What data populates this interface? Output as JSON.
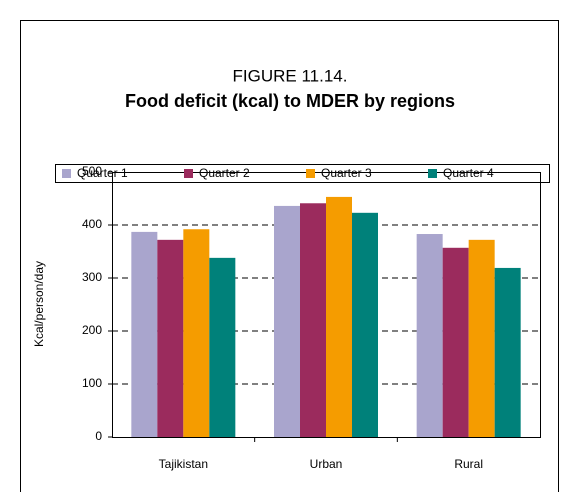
{
  "chart_data": {
    "type": "bar",
    "figure_label": "FIGURE 11.14.",
    "title": "Food deficit (kcal) to MDER by regions",
    "y_label": "Kcal/person/day",
    "categories": [
      "Tajikistan",
      "Urban",
      "Rural"
    ],
    "series": [
      {
        "name": "Quarter 1",
        "color": "#a9a5cd",
        "values": [
          387,
          436,
          383
        ]
      },
      {
        "name": "Quarter 2",
        "color": "#9b2b5d",
        "values": [
          372,
          441,
          357
        ]
      },
      {
        "name": "Quarter 3",
        "color": "#f59c00",
        "values": [
          392,
          453,
          372
        ]
      },
      {
        "name": "Quarter 4",
        "color": "#00817a",
        "values": [
          338,
          423,
          319
        ]
      }
    ],
    "ylim": [
      0,
      500
    ],
    "yticks": [
      0,
      100,
      200,
      300,
      400,
      500
    ],
    "grid": true
  }
}
